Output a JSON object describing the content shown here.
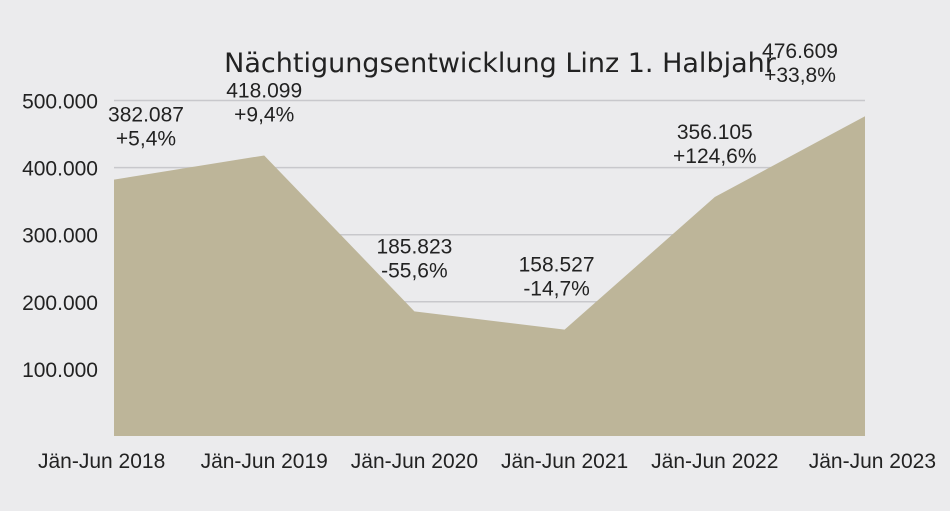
{
  "chart_data": {
    "type": "area",
    "title": "Nächtigungsentwicklung Linz 1. Halbjahr",
    "xlabel": "",
    "ylabel": "",
    "ylim": [
      0,
      500000
    ],
    "yticks": [
      100000,
      200000,
      300000,
      400000,
      500000
    ],
    "ytick_labels": [
      "100.000",
      "200.000",
      "300.000",
      "400.000",
      "500.000"
    ],
    "categories": [
      "Jän-Jun 2018",
      "Jän-Jun 2019",
      "Jän-Jun 2020",
      "Jän-Jun 2021",
      "Jän-Jun 2022",
      "Jän-Jun 2023"
    ],
    "values": [
      382087,
      418099,
      185823,
      158527,
      356105,
      476609
    ],
    "value_labels": [
      "382.087",
      "418.099",
      "185.823",
      "158.527",
      "356.105",
      "476.609"
    ],
    "change_labels": [
      "+5,4%",
      "+9,4%",
      "-55,6%",
      "-14,7%",
      "+124,6%",
      "+33,8%"
    ],
    "grid": true,
    "legend": "none",
    "colors": {
      "area": "#bdb599",
      "grid": "#c8c8cc",
      "background": "#ebebed"
    }
  }
}
